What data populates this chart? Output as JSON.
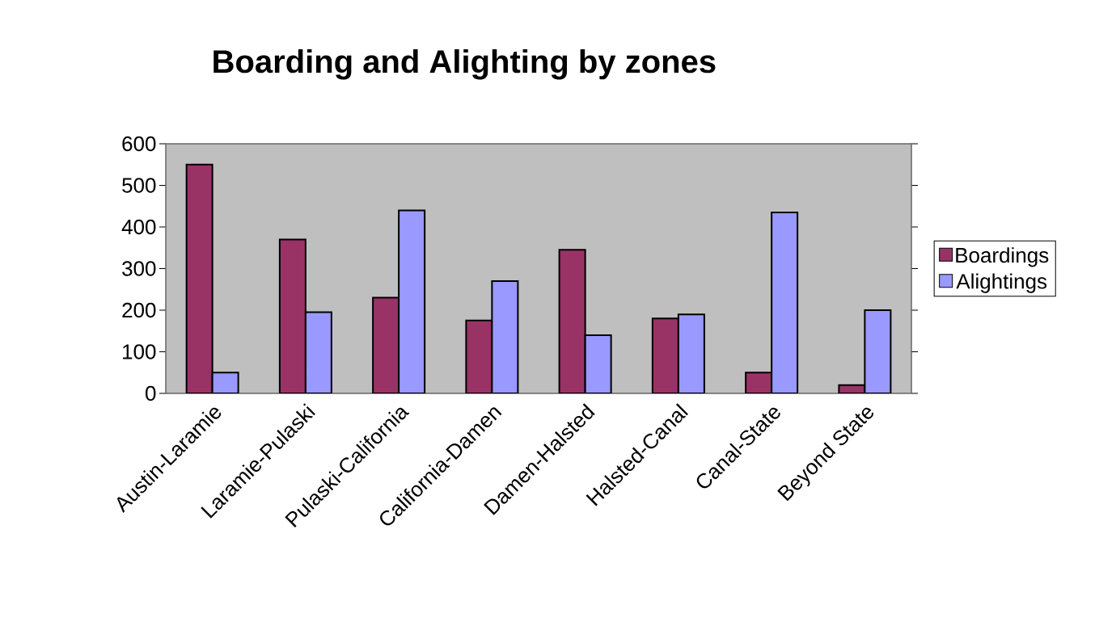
{
  "chart_data": {
    "type": "bar",
    "title": "Boarding and Alighting by zones",
    "categories": [
      "Austin-Laramie",
      "Laramie-Pulaski",
      "Pulaski-California",
      "California-Damen",
      "Damen-Halsted",
      "Halsted-Canal",
      "Canal-State",
      "Beyond State"
    ],
    "series": [
      {
        "name": "Boardings",
        "color": "#993366",
        "values": [
          550,
          370,
          230,
          175,
          345,
          180,
          50,
          20
        ]
      },
      {
        "name": "Alightings",
        "color": "#9999ff",
        "values": [
          50,
          195,
          440,
          270,
          140,
          190,
          435,
          200
        ]
      }
    ],
    "ylim": [
      0,
      600
    ],
    "yticks": [
      0,
      100,
      200,
      300,
      400,
      500,
      600
    ],
    "legend": "right"
  }
}
